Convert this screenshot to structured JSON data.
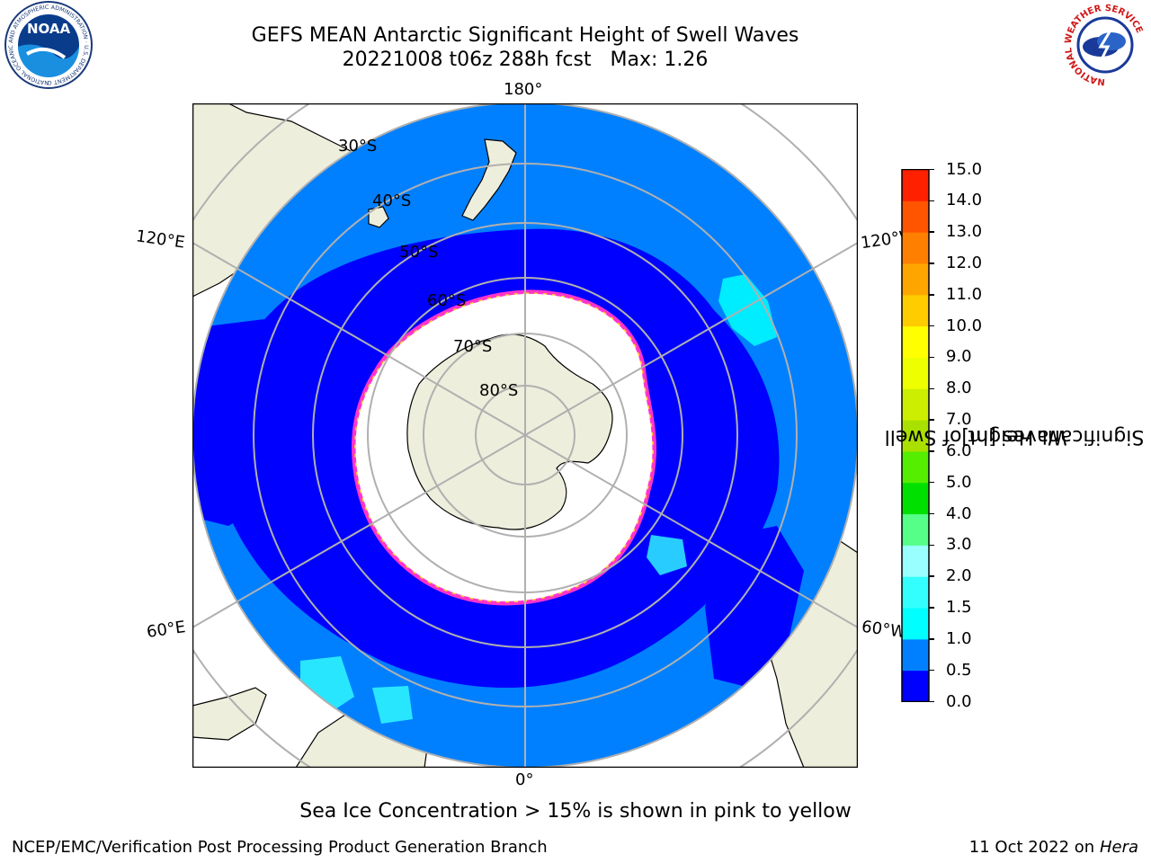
{
  "title": {
    "line1": "GEFS MEAN Antarctic Significant Height of Swell Waves",
    "line2": "20221008 t06z 288h fcst   Max: 1.26"
  },
  "logos": {
    "noara_text": "NOAA",
    "noaa_ring_text": "NATIONAL OCEANIC AND ATMOSPHERIC ADMINISTRATION · U.S. DEPARTMENT OF COMMERCE",
    "nws_ring_text": "NATIONAL WEATHER SERVICE"
  },
  "map": {
    "longitude_labels": {
      "top": "180°",
      "bottom": "0°",
      "upper_left": "120°E",
      "upper_right": "120°W",
      "lower_left": "60°E",
      "lower_right": "60°W"
    },
    "latitude_labels": [
      "30°S",
      "40°S",
      "50°S",
      "60°S",
      "70°S",
      "80°S"
    ],
    "colors": {
      "ocean_low": "#0000ff",
      "ocean_mid": "#0080ff",
      "land": "#eeeedc",
      "sea_ice": "#ffffff",
      "ice_edge_pink": "#ff33cc",
      "ice_edge_yellow": "#ffcc33",
      "grid": "#b0b0b0"
    }
  },
  "colorbar": {
    "label": "Significant Height of Swell\nWaves [m]",
    "ticks": [
      "0.0",
      "0.5",
      "1.0",
      "1.5",
      "2.0",
      "3.0",
      "4.0",
      "5.0",
      "6.0",
      "7.0",
      "8.0",
      "9.0",
      "10.0",
      "11.0",
      "12.0",
      "13.0",
      "14.0",
      "15.0"
    ],
    "colors": [
      "#0000ff",
      "#0080ff",
      "#00ffff",
      "#33ffff",
      "#99ffff",
      "#55ff88",
      "#00e000",
      "#55ee00",
      "#aae000",
      "#ccee00",
      "#eeff00",
      "#ffff00",
      "#ffcc00",
      "#ffa500",
      "#ff8000",
      "#ff5500",
      "#ff2000",
      "#ff0000"
    ]
  },
  "caption": "Sea Ice Concentration > 15% is shown in pink to yellow",
  "footer": {
    "left": "NCEP/EMC/Verification Post Processing Product Generation Branch",
    "right_date": "11 Oct 2022 on ",
    "right_host": "Hera"
  }
}
